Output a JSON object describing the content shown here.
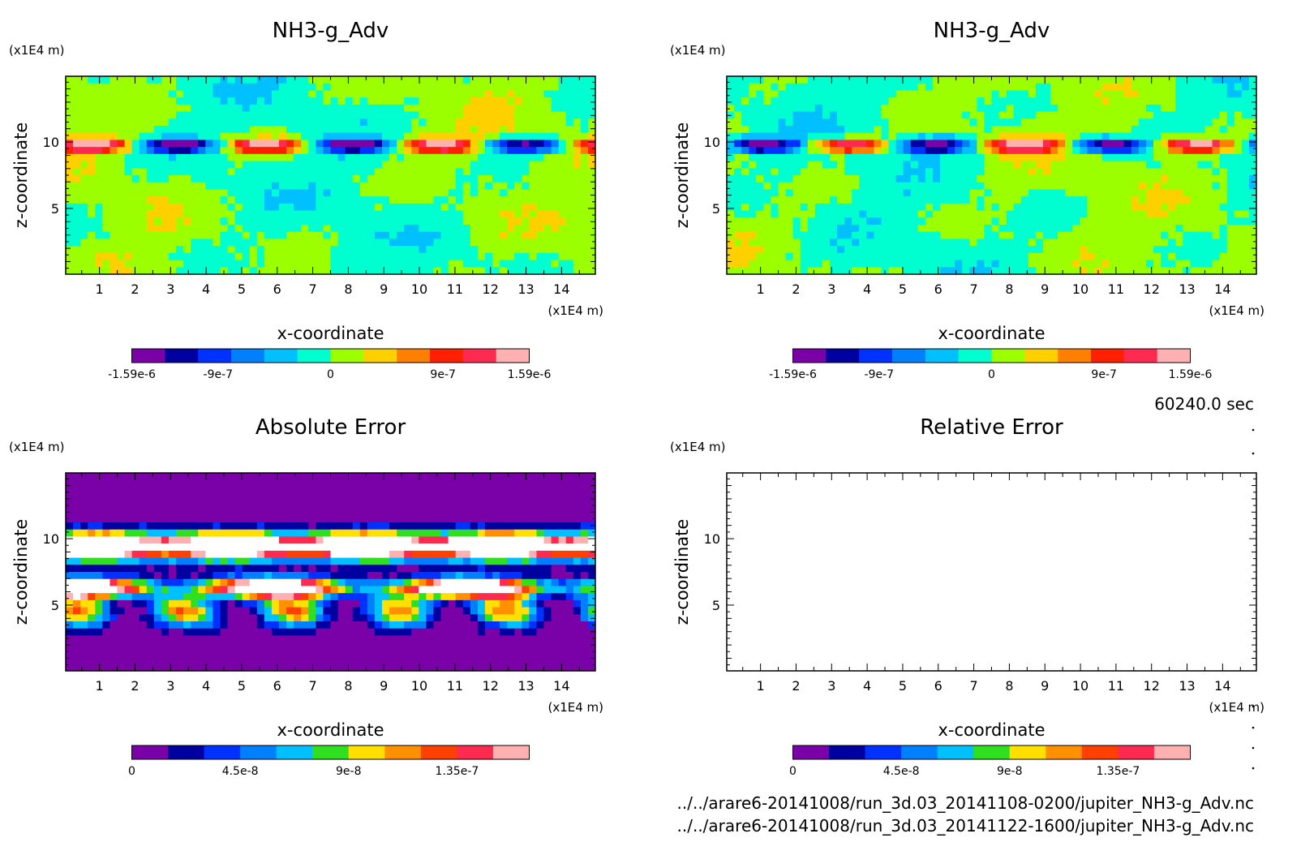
{
  "figure": {
    "time_label": "60240.0 sec",
    "files": [
      "../../arare6-20141008/run_3d.03_20141108-0200/jupiter_NH3-g_Adv.nc",
      "../../arare6-20141008/run_3d.03_20141122-1600/jupiter_NH3-g_Adv.nc"
    ]
  },
  "chart_data": [
    {
      "type": "heatmap",
      "panel": "top-left",
      "title": "NH3-g_Adv",
      "xlabel": "x-coordinate",
      "ylabel": "z-coordinate",
      "x_unit": "(x1E4 m)",
      "y_unit": "(x1E4 m)",
      "xlim": [
        0.05,
        14.95
      ],
      "ylim": [
        0.05,
        14.95
      ],
      "x_ticks": [
        "1",
        "2",
        "3",
        "4",
        "5",
        "6",
        "7",
        "8",
        "9",
        "10",
        "11",
        "12",
        "13",
        "14"
      ],
      "y_ticks": [
        "5",
        "10"
      ],
      "colorbar": {
        "levels": 11,
        "range": [
          -1.59e-06,
          1.59e-06
        ],
        "tick_labels": [
          "-1.59e-6",
          "-9e-7",
          "0",
          "9e-7",
          "1.59e-6"
        ],
        "tick_values": [
          -1.59e-06,
          -9e-07,
          0,
          9e-07,
          1.59e-06
        ],
        "colors": [
          "#7a00a8",
          "#0000a0",
          "#0032ff",
          "#0080ff",
          "#00c0ff",
          "#00ffd0",
          "#9bff00",
          "#ffd000",
          "#ff8000",
          "#ff2000",
          "#ff2a50",
          "#ffb0b0"
        ]
      }
    },
    {
      "type": "heatmap",
      "panel": "top-right",
      "title": "NH3-g_Adv",
      "xlabel": "x-coordinate",
      "ylabel": "z-coordinate",
      "x_unit": "(x1E4 m)",
      "y_unit": "(x1E4 m)",
      "xlim": [
        0.05,
        14.95
      ],
      "ylim": [
        0.05,
        14.95
      ],
      "x_ticks": [
        "1",
        "2",
        "3",
        "4",
        "5",
        "6",
        "7",
        "8",
        "9",
        "10",
        "11",
        "12",
        "13",
        "14"
      ],
      "y_ticks": [
        "5",
        "10"
      ],
      "colorbar": {
        "levels": 11,
        "range": [
          -1.59e-06,
          1.59e-06
        ],
        "tick_labels": [
          "-1.59e-6",
          "-9e-7",
          "0",
          "9e-7",
          "1.59e-6"
        ],
        "tick_values": [
          -1.59e-06,
          -9e-07,
          0,
          9e-07,
          1.59e-06
        ],
        "colors": [
          "#7a00a8",
          "#0000a0",
          "#0032ff",
          "#0080ff",
          "#00c0ff",
          "#00ffd0",
          "#9bff00",
          "#ffd000",
          "#ff8000",
          "#ff2000",
          "#ff2a50",
          "#ffb0b0"
        ]
      }
    },
    {
      "type": "heatmap",
      "panel": "bottom-left",
      "title": "Absolute Error",
      "xlabel": "x-coordinate",
      "ylabel": "z-coordinate",
      "x_unit": "(x1E4 m)",
      "y_unit": "(x1E4 m)",
      "xlim": [
        0.05,
        14.95
      ],
      "ylim": [
        0.05,
        14.95
      ],
      "x_ticks": [
        "1",
        "2",
        "3",
        "4",
        "5",
        "6",
        "7",
        "8",
        "9",
        "10",
        "11",
        "12",
        "13",
        "14"
      ],
      "y_ticks": [
        "5",
        "10"
      ],
      "colorbar": {
        "levels": 11,
        "range": [
          0,
          1.65e-07
        ],
        "tick_labels": [
          "0",
          "4.5e-8",
          "9e-8",
          "1.35e-7"
        ],
        "tick_values": [
          0,
          4.5e-08,
          9e-08,
          1.35e-07
        ],
        "colors": [
          "#7a00a8",
          "#0000a0",
          "#0032ff",
          "#0080ff",
          "#00c0ff",
          "#30e020",
          "#ffe000",
          "#ff9000",
          "#ff4000",
          "#ff2a50",
          "#ffb0b0"
        ]
      }
    },
    {
      "type": "heatmap",
      "panel": "bottom-right",
      "title": "Relative Error",
      "xlabel": "x-coordinate",
      "ylabel": "z-coordinate",
      "x_unit": "(x1E4 m)",
      "y_unit": "(x1E4 m)",
      "xlim": [
        0.05,
        14.95
      ],
      "ylim": [
        0.05,
        14.95
      ],
      "x_ticks": [
        "1",
        "2",
        "3",
        "4",
        "5",
        "6",
        "7",
        "8",
        "9",
        "10",
        "11",
        "12",
        "13",
        "14"
      ],
      "y_ticks": [
        "5",
        "10"
      ],
      "empty": true,
      "colorbar": {
        "levels": 11,
        "range": [
          0,
          1.65e-07
        ],
        "tick_labels": [
          "0",
          "4.5e-8",
          "9e-8",
          "1.35e-7"
        ],
        "tick_values": [
          0,
          4.5e-08,
          9e-08,
          1.35e-07
        ],
        "colors": [
          "#7a00a8",
          "#0000a0",
          "#0032ff",
          "#0080ff",
          "#00c0ff",
          "#30e020",
          "#ffe000",
          "#ff9000",
          "#ff4000",
          "#ff2a50",
          "#ffb0b0"
        ]
      }
    }
  ]
}
